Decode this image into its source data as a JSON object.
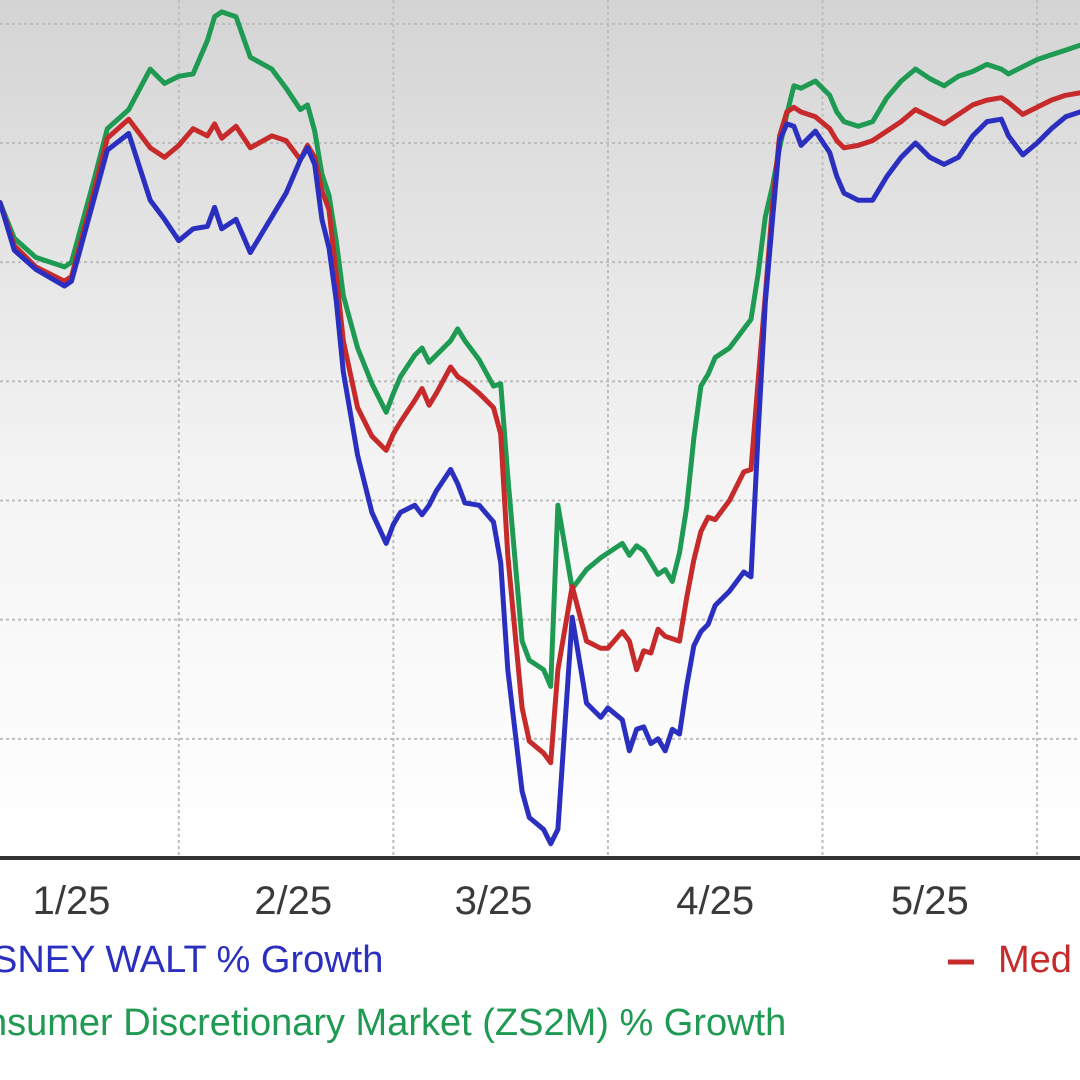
{
  "chart_data": {
    "type": "line",
    "title": "",
    "xlabel": "",
    "ylabel": "",
    "x_ticks": [
      "1/25",
      "2/25",
      "3/25",
      "4/25",
      "5/25"
    ],
    "x_tick_days": [
      10,
      41,
      69,
      100,
      130
    ],
    "x_range": [
      0,
      151
    ],
    "y_range": [
      -30,
      6
    ],
    "grid": true,
    "legend": [
      {
        "label": "SNEY WALT % Growth",
        "series": "disney"
      },
      {
        "label": "Med",
        "series": "media"
      },
      {
        "label": "nsumer Discretionary Market (ZS2M) % Growth",
        "series": "market"
      }
    ],
    "colors": {
      "disney": "#2b2fbf",
      "media": "#c62a2a",
      "market": "#1f9a52"
    },
    "series": [
      {
        "name": "SNEY WALT % Growth",
        "key": "disney",
        "x": [
          0,
          2,
          5,
          9,
          10,
          13,
          15,
          18,
          21,
          23,
          25,
          27,
          29,
          30,
          31,
          33,
          35,
          38,
          40,
          42,
          43,
          44,
          45,
          46,
          47,
          48,
          50,
          52,
          54,
          55,
          56,
          58,
          59,
          60,
          61,
          63,
          64,
          65,
          67,
          69,
          70,
          71,
          73,
          74,
          76,
          77,
          78,
          80,
          82,
          84,
          85,
          87,
          88,
          89,
          90,
          91,
          92,
          93,
          94,
          95,
          96,
          97,
          98,
          99,
          100,
          102,
          104,
          105,
          106,
          107,
          108,
          109,
          110,
          111,
          112,
          114,
          116,
          117,
          118,
          120,
          122,
          124,
          126,
          128,
          130,
          132,
          134,
          136,
          138,
          140,
          141,
          143,
          145,
          147,
          149,
          151
        ],
        "y": [
          -2.5,
          -4.5,
          -5.3,
          -6,
          -5.8,
          -2.5,
          -0.3,
          0.4,
          -2.4,
          -3.2,
          -4.1,
          -3.6,
          -3.5,
          -2.7,
          -3.6,
          -3.2,
          -4.6,
          -3.1,
          -2.1,
          -0.7,
          -0.2,
          -0.9,
          -3.2,
          -4.4,
          -6.6,
          -9.6,
          -13.1,
          -15.5,
          -16.8,
          -16.0,
          -15.5,
          -15.2,
          -15.6,
          -15.2,
          -14.6,
          -13.7,
          -14.3,
          -15.1,
          -15.2,
          -15.9,
          -17.6,
          -22.1,
          -27.2,
          -28.3,
          -28.8,
          -29.4,
          -28.8,
          -19.9,
          -23.5,
          -24.1,
          -23.7,
          -24.2,
          -25.5,
          -24.6,
          -24.5,
          -25.2,
          -25.0,
          -25.5,
          -24.6,
          -24.8,
          -22.8,
          -21.1,
          -20.5,
          -20.2,
          -19.4,
          -18.8,
          -18.0,
          -18.2,
          -12.2,
          -6.7,
          -3.2,
          0.1,
          0.8,
          0.7,
          -0.1,
          0.5,
          -0.4,
          -1.4,
          -2.1,
          -2.4,
          -2.4,
          -1.4,
          -0.6,
          0.0,
          -0.6,
          -0.9,
          -0.6,
          0.3,
          0.9,
          1.0,
          0.3,
          -0.5,
          0.0,
          0.6,
          1.1,
          1.3
        ]
      },
      {
        "name": "Med",
        "key": "media",
        "x": [
          0,
          2,
          5,
          9,
          10,
          13,
          15,
          18,
          21,
          23,
          25,
          27,
          29,
          30,
          31,
          33,
          35,
          38,
          40,
          42,
          43,
          44,
          45,
          46,
          47,
          48,
          50,
          52,
          54,
          55,
          56,
          58,
          59,
          60,
          61,
          63,
          64,
          65,
          67,
          69,
          70,
          71,
          73,
          74,
          76,
          77,
          78,
          80,
          82,
          84,
          85,
          87,
          88,
          89,
          90,
          91,
          92,
          93,
          94,
          95,
          96,
          97,
          98,
          99,
          100,
          102,
          104,
          105,
          106,
          107,
          108,
          109,
          110,
          111,
          112,
          114,
          116,
          117,
          118,
          120,
          122,
          124,
          126,
          128,
          130,
          132,
          134,
          136,
          138,
          140,
          141,
          143,
          145,
          147,
          149,
          151
        ],
        "y": [
          -2.5,
          -4.3,
          -5.2,
          -5.8,
          -5.6,
          -2.2,
          0.2,
          1.0,
          -0.2,
          -0.6,
          -0.1,
          0.6,
          0.3,
          0.8,
          0.2,
          0.7,
          -0.2,
          0.3,
          0.1,
          -0.7,
          -0.1,
          -0.6,
          -2.0,
          -2.8,
          -5.5,
          -8.3,
          -11.1,
          -12.3,
          -12.9,
          -12.2,
          -11.7,
          -10.8,
          -10.3,
          -11.0,
          -10.5,
          -9.4,
          -9.8,
          -10.0,
          -10.5,
          -11.1,
          -12.2,
          -17.3,
          -23.7,
          -25.1,
          -25.6,
          -26.0,
          -22.1,
          -18.6,
          -20.9,
          -21.2,
          -21.2,
          -20.5,
          -20.9,
          -22.1,
          -21.3,
          -21.4,
          -20.4,
          -20.7,
          -20.8,
          -20.9,
          -19.1,
          -17.5,
          -16.3,
          -15.7,
          -15.8,
          -15.0,
          -13.8,
          -13.7,
          -10.0,
          -6.4,
          -2.6,
          0.3,
          1.3,
          1.5,
          1.3,
          1.1,
          0.6,
          0.1,
          -0.2,
          -0.1,
          0.1,
          0.5,
          0.9,
          1.4,
          1.1,
          0.8,
          1.2,
          1.6,
          1.8,
          1.9,
          1.7,
          1.2,
          1.5,
          1.8,
          2.0,
          2.1
        ]
      },
      {
        "name": "nsumer Discretionary Market (ZS2M) % Growth",
        "key": "market",
        "x": [
          0,
          2,
          5,
          9,
          10,
          13,
          15,
          18,
          21,
          23,
          25,
          27,
          29,
          30,
          31,
          33,
          35,
          38,
          40,
          42,
          43,
          44,
          45,
          46,
          47,
          48,
          50,
          52,
          54,
          55,
          56,
          58,
          59,
          60,
          61,
          63,
          64,
          65,
          67,
          69,
          70,
          71,
          73,
          74,
          76,
          77,
          78,
          80,
          82,
          84,
          85,
          87,
          88,
          89,
          90,
          91,
          92,
          93,
          94,
          95,
          96,
          97,
          98,
          99,
          100,
          102,
          104,
          105,
          106,
          107,
          108,
          109,
          110,
          111,
          112,
          114,
          116,
          117,
          118,
          120,
          122,
          124,
          126,
          128,
          130,
          132,
          134,
          136,
          138,
          140,
          141,
          143,
          145,
          147,
          149,
          151
        ],
        "y": [
          -2.5,
          -4.0,
          -4.8,
          -5.2,
          -5.0,
          -1.7,
          0.6,
          1.4,
          3.1,
          2.5,
          2.8,
          2.9,
          4.3,
          5.3,
          5.5,
          5.3,
          3.6,
          3.1,
          2.3,
          1.4,
          1.6,
          0.5,
          -1.3,
          -2.2,
          -4.1,
          -6.4,
          -8.6,
          -10.1,
          -11.3,
          -10.5,
          -9.8,
          -8.9,
          -8.6,
          -9.2,
          -8.9,
          -8.3,
          -7.8,
          -8.3,
          -9.1,
          -10.2,
          -10.1,
          -14.0,
          -20.9,
          -21.7,
          -22.1,
          -22.8,
          -15.2,
          -18.7,
          -17.9,
          -17.4,
          -17.2,
          -16.8,
          -17.3,
          -16.9,
          -17.1,
          -17.6,
          -18.1,
          -17.9,
          -18.4,
          -17.2,
          -15.3,
          -12.4,
          -10.2,
          -9.7,
          -9.0,
          -8.6,
          -7.8,
          -7.4,
          -5.5,
          -3.1,
          -1.8,
          -0.2,
          1.2,
          2.4,
          2.3,
          2.6,
          2.0,
          1.3,
          0.9,
          0.7,
          0.9,
          1.9,
          2.6,
          3.1,
          2.7,
          2.4,
          2.8,
          3.0,
          3.3,
          3.1,
          2.9,
          3.2,
          3.5,
          3.7,
          3.9,
          4.1
        ]
      }
    ]
  }
}
